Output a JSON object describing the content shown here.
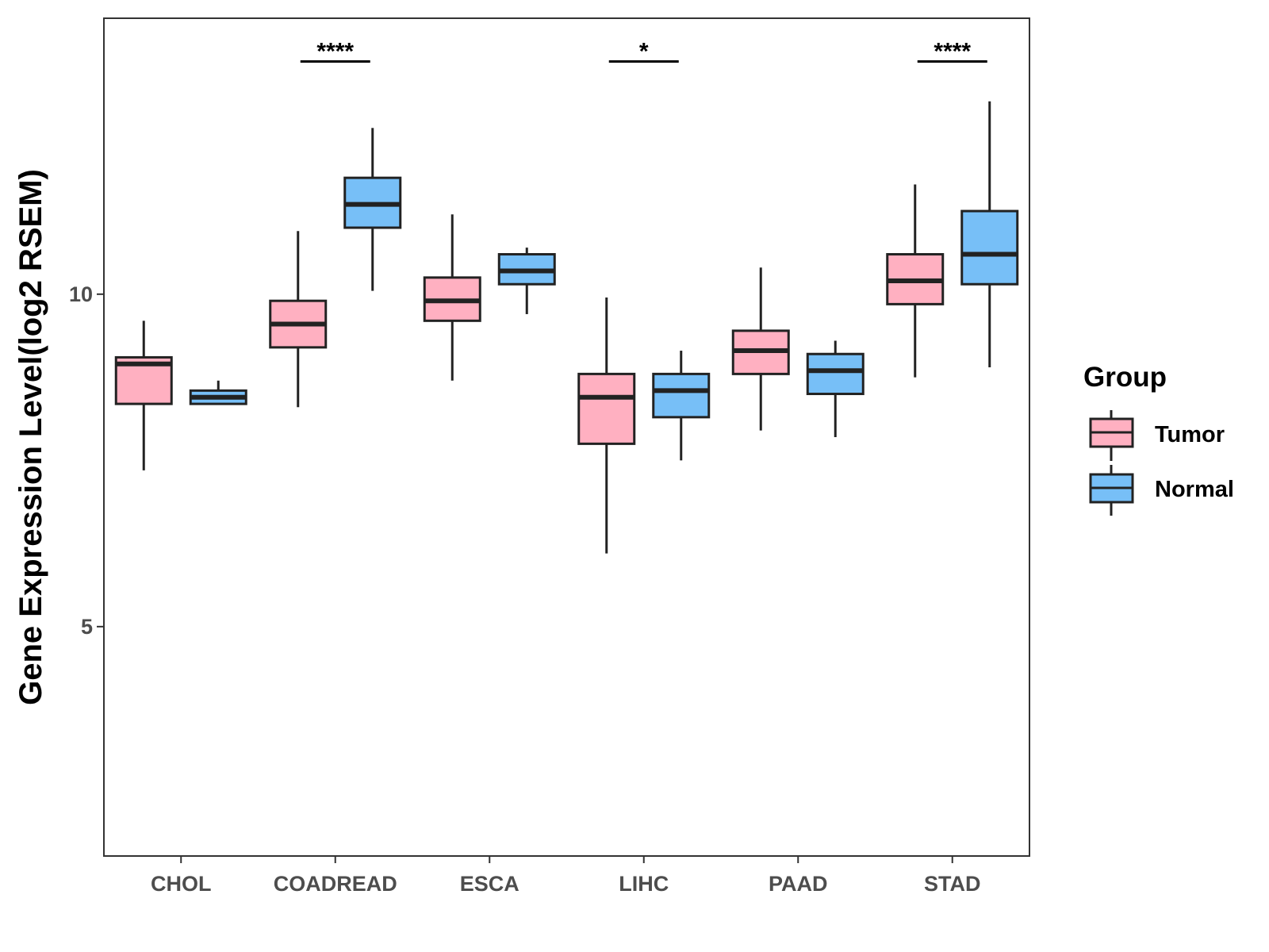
{
  "chart_data": {
    "type": "boxplot",
    "title": "",
    "xlabel": "",
    "ylabel": "Gene Expression Level(log2 RSEM)",
    "ylim": [
      1.55,
      14.15
    ],
    "yticks": [
      {
        "value": 5,
        "label": "5"
      },
      {
        "value": 10,
        "label": "10"
      }
    ],
    "categories": [
      "CHOL",
      "COADREAD",
      "ESCA",
      "LIHC",
      "PAAD",
      "STAD"
    ],
    "legend": {
      "title": "Group",
      "position": "right",
      "entries": [
        {
          "name": "Tumor",
          "color": "#FFB0C1"
        },
        {
          "name": "Normal",
          "color": "#77BFF7"
        }
      ]
    },
    "series": [
      {
        "name": "Tumor",
        "color": "#FFB0C1",
        "boxes": [
          {
            "category": "CHOL",
            "min": 7.35,
            "q1": 8.35,
            "median": 8.95,
            "q3": 9.05,
            "max": 9.6
          },
          {
            "category": "COADREAD",
            "min": 8.3,
            "q1": 9.2,
            "median": 9.55,
            "q3": 9.9,
            "max": 10.95
          },
          {
            "category": "ESCA",
            "min": 8.7,
            "q1": 9.6,
            "median": 9.9,
            "q3": 10.25,
            "max": 11.2
          },
          {
            "category": "LIHC",
            "min": 6.1,
            "q1": 7.75,
            "median": 8.45,
            "q3": 8.8,
            "max": 9.95
          },
          {
            "category": "PAAD",
            "min": 7.95,
            "q1": 8.8,
            "median": 9.15,
            "q3": 9.45,
            "max": 10.4
          },
          {
            "category": "STAD",
            "min": 8.75,
            "q1": 9.85,
            "median": 10.2,
            "q3": 10.6,
            "max": 11.65
          }
        ]
      },
      {
        "name": "Normal",
        "color": "#77BFF7",
        "boxes": [
          {
            "category": "CHOL",
            "min": 8.35,
            "q1": 8.35,
            "median": 8.45,
            "q3": 8.55,
            "max": 8.7
          },
          {
            "category": "COADREAD",
            "min": 10.05,
            "q1": 11.0,
            "median": 11.35,
            "q3": 11.75,
            "max": 12.5
          },
          {
            "category": "ESCA",
            "min": 9.7,
            "q1": 10.15,
            "median": 10.35,
            "q3": 10.6,
            "max": 10.7
          },
          {
            "category": "LIHC",
            "min": 7.5,
            "q1": 8.15,
            "median": 8.55,
            "q3": 8.8,
            "max": 9.15
          },
          {
            "category": "PAAD",
            "min": 7.85,
            "q1": 8.5,
            "median": 8.85,
            "q3": 9.1,
            "max": 9.3
          },
          {
            "category": "STAD",
            "min": 8.9,
            "q1": 10.15,
            "median": 10.6,
            "q3": 11.25,
            "max": 12.9
          }
        ]
      }
    ],
    "annotations": [
      {
        "category": "COADREAD",
        "label": "****",
        "y": 13.5
      },
      {
        "category": "LIHC",
        "label": "*",
        "y": 13.5
      },
      {
        "category": "STAD",
        "label": "****",
        "y": 13.5
      }
    ]
  }
}
